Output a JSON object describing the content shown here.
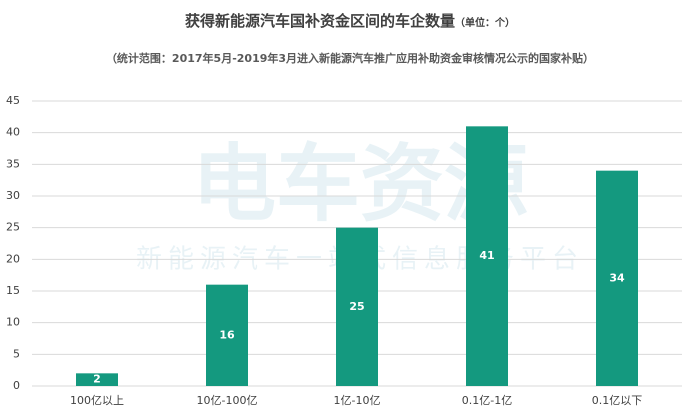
{
  "chart_data": {
    "type": "bar",
    "title": "获得新能源汽车国补资金区间的车企数量",
    "unit_note": "（单位：个）",
    "subtitle": "（统计范围：2017年5月-2019年3月进入新能源汽车推广应用补助资金审核情况公示的国家补贴）",
    "watermark": "电车资源",
    "watermark_tagline": "新能源汽车一站式信息服务平台",
    "categories": [
      "100亿以上",
      "10亿-100亿",
      "1亿-10亿",
      "0.1亿-1亿",
      "0.1亿以下"
    ],
    "values": [
      2,
      16,
      25,
      41,
      34
    ],
    "color": "#14997f",
    "ylim": [
      0,
      45
    ],
    "yticks": [
      0,
      5,
      10,
      15,
      20,
      25,
      30,
      35,
      40,
      45
    ],
    "grid": true
  }
}
